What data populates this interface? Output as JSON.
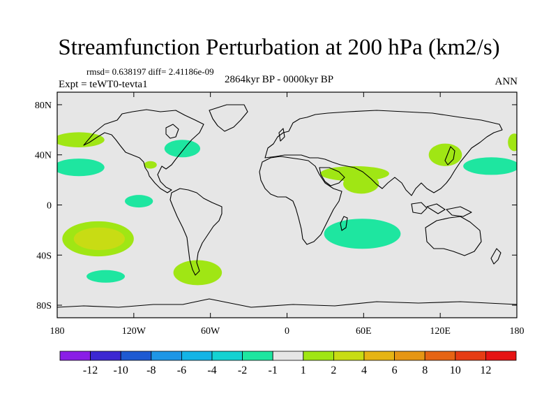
{
  "chart_data": {
    "type": "contour-map",
    "title": "Streamfunction Perturbation at 200 hPa (km2/s)",
    "stats_text": "rmsd= 0.638197 diff= 2.41186e-09",
    "left_string": "Expt = teWT0-tevta1",
    "center_string": "2864kyr BP - 0000kyr BP",
    "right_string": "ANN",
    "lon_range": [
      -180,
      180
    ],
    "lat_range": [
      -90,
      90
    ],
    "x_ticks": [
      {
        "lon": -180,
        "label": "180"
      },
      {
        "lon": -120,
        "label": "120W"
      },
      {
        "lon": -60,
        "label": "60W"
      },
      {
        "lon": 0,
        "label": "0"
      },
      {
        "lon": 60,
        "label": "60E"
      },
      {
        "lon": 120,
        "label": "120E"
      },
      {
        "lon": 180,
        "label": "180"
      }
    ],
    "y_ticks": [
      {
        "lat": 80,
        "label": "80N"
      },
      {
        "lat": 40,
        "label": "40N"
      },
      {
        "lat": 0,
        "label": "0"
      },
      {
        "lat": -40,
        "label": "40S"
      },
      {
        "lat": -80,
        "label": "80S"
      }
    ],
    "colorbar": {
      "colors": [
        "#8a1ee6",
        "#3c28d2",
        "#1e5ad2",
        "#1e96e6",
        "#14b4e6",
        "#14d2d2",
        "#1ee6a0",
        "#e6e6e6",
        "#a0e614",
        "#c8dc14",
        "#e6b414",
        "#e69614",
        "#e66414",
        "#e63c14",
        "#e61414"
      ],
      "labels": [
        "-12",
        "-10",
        "-8",
        "-6",
        "-4",
        "-2",
        "-1",
        "1",
        "2",
        "4",
        "6",
        "8",
        "10",
        "12"
      ]
    },
    "anomalies": [
      {
        "name": "north-pacific-west-positive",
        "lon": -163,
        "lat": 52,
        "rx": 20,
        "ry": 6,
        "color": "#a0e614"
      },
      {
        "name": "north-pacific-west-negative",
        "lon": -163,
        "lat": 30,
        "rx": 20,
        "ry": 7,
        "color": "#1ee6a0"
      },
      {
        "name": "mexico-positive",
        "lon": -107,
        "lat": 32,
        "rx": 5,
        "ry": 3,
        "color": "#a0e614"
      },
      {
        "name": "north-america-negative",
        "lon": -82,
        "lat": 45,
        "rx": 14,
        "ry": 7,
        "color": "#1ee6a0"
      },
      {
        "name": "equatorial-pacific-negative",
        "lon": -116,
        "lat": 3,
        "rx": 11,
        "ry": 5,
        "color": "#1ee6a0"
      },
      {
        "name": "south-pacific-positive",
        "lon": -148,
        "lat": -27,
        "rx": 28,
        "ry": 14,
        "color": "#a0e614"
      },
      {
        "name": "south-pacific-core",
        "lon": -147,
        "lat": -27,
        "rx": 20,
        "ry": 9,
        "color": "#c8dc14"
      },
      {
        "name": "south-pacific-negative",
        "lon": -142,
        "lat": -57,
        "rx": 15,
        "ry": 5,
        "color": "#1ee6a0"
      },
      {
        "name": "south-america-positive",
        "lon": -70,
        "lat": -54,
        "rx": 19,
        "ry": 10,
        "color": "#a0e614"
      },
      {
        "name": "middle-east-positive",
        "lon": 53,
        "lat": 25,
        "rx": 27,
        "ry": 6,
        "color": "#a0e614"
      },
      {
        "name": "arabia-positive",
        "lon": 58,
        "lat": 17,
        "rx": 14,
        "ry": 8,
        "color": "#a0e614"
      },
      {
        "name": "indian-ocean-negative",
        "lon": 59,
        "lat": -23,
        "rx": 30,
        "ry": 12,
        "color": "#1ee6a0"
      },
      {
        "name": "east-asia-positive",
        "lon": 124,
        "lat": 40,
        "rx": 13,
        "ry": 9,
        "color": "#a0e614"
      },
      {
        "name": "north-pacific-east-negative",
        "lon": 160,
        "lat": 31,
        "rx": 22,
        "ry": 7,
        "color": "#1ee6a0"
      },
      {
        "name": "dateline-positive",
        "lon": 178,
        "lat": 50,
        "rx": 5,
        "ry": 7,
        "color": "#a0e614"
      }
    ]
  }
}
